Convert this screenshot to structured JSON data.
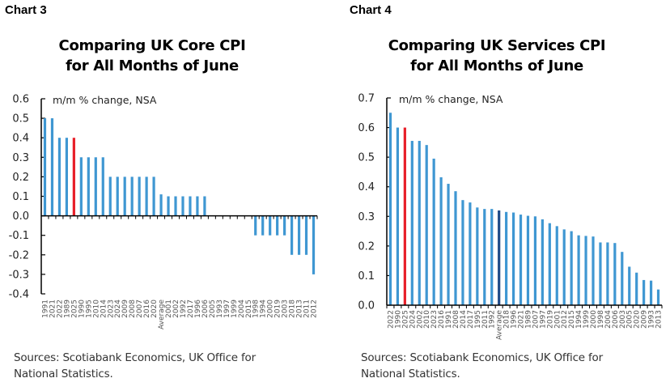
{
  "charts": [
    {
      "label": "Chart 3",
      "title_line1": "Comparing UK Core CPI",
      "title_line2": "for All Months of June",
      "source_line1": "Sources: Scotiabank Economics, UK Office for",
      "source_line2": "National Statistics."
    },
    {
      "label": "Chart 4",
      "title_line1": "Comparing UK Services CPI",
      "title_line2": "for All Months of June",
      "source_line1": "Sources: Scotiabank Economics, UK Office for",
      "source_line2": "National Statistics."
    }
  ],
  "colors": {
    "bar": "#3f97d2",
    "highlight": "#e8202a",
    "average": "#1f4a87",
    "axis": "#000000"
  },
  "chart_data": [
    {
      "type": "bar",
      "title": "Comparing UK Core CPI for All Months of June",
      "ylabel": "m/m % change, NSA",
      "ylim": [
        -0.4,
        0.6
      ],
      "yticks": [
        "0.6",
        "0.5",
        "0.4",
        "0.3",
        "0.2",
        "0.1",
        "0.0",
        "-0.1",
        "-0.2",
        "-0.3",
        "-0.4"
      ],
      "highlight": "2025",
      "categories": [
        "1991",
        "2021",
        "2022",
        "1989",
        "2025",
        "1990",
        "1995",
        "2010",
        "2014",
        "2023",
        "2024",
        "2009",
        "2008",
        "2007",
        "2016",
        "2020",
        "Average",
        "2001",
        "2002",
        "1992",
        "2017",
        "1996",
        "2006",
        "2005",
        "1993",
        "1997",
        "1999",
        "2004",
        "2015",
        "1998",
        "1994",
        "2000",
        "2019",
        "2003",
        "2018",
        "2013",
        "2011",
        "2012"
      ],
      "values": [
        0.5,
        0.5,
        0.4,
        0.4,
        0.4,
        0.3,
        0.3,
        0.3,
        0.3,
        0.2,
        0.2,
        0.2,
        0.2,
        0.2,
        0.2,
        0.2,
        0.11,
        0.1,
        0.1,
        0.1,
        0.1,
        0.1,
        0.1,
        0,
        0,
        0,
        0,
        0,
        0,
        -0.1,
        -0.1,
        -0.1,
        -0.1,
        -0.1,
        -0.2,
        -0.2,
        -0.2,
        -0.3
      ]
    },
    {
      "type": "bar",
      "title": "Comparing UK Services CPI for All Months of June",
      "ylabel": "m/m % change, NSA",
      "ylim": [
        0,
        0.7
      ],
      "yticks": [
        "0.7",
        "0.6",
        "0.5",
        "0.4",
        "0.3",
        "0.2",
        "0.1",
        "0.0"
      ],
      "highlight": "2025",
      "average_color_distinct": true,
      "categories": [
        "2022",
        "1990",
        "2025",
        "2024",
        "2002",
        "2010",
        "2023",
        "2016",
        "1991",
        "2008",
        "2014",
        "2017",
        "1995",
        "2011",
        "1992",
        "Average",
        "2018",
        "1996",
        "2021",
        "1989",
        "2007",
        "1997",
        "2019",
        "2001",
        "2012",
        "2015",
        "1994",
        "1999",
        "2000",
        "1998",
        "2004",
        "2006",
        "2003",
        "2005",
        "2020",
        "2009",
        "1993",
        "2013"
      ],
      "values": [
        0.65,
        0.6,
        0.6,
        0.555,
        0.555,
        0.541,
        0.495,
        0.432,
        0.41,
        0.385,
        0.355,
        0.347,
        0.33,
        0.325,
        0.325,
        0.32,
        0.315,
        0.313,
        0.306,
        0.302,
        0.3,
        0.29,
        0.277,
        0.267,
        0.256,
        0.25,
        0.236,
        0.234,
        0.232,
        0.212,
        0.212,
        0.21,
        0.18,
        0.13,
        0.11,
        0.085,
        0.083,
        0.053
      ]
    }
  ]
}
